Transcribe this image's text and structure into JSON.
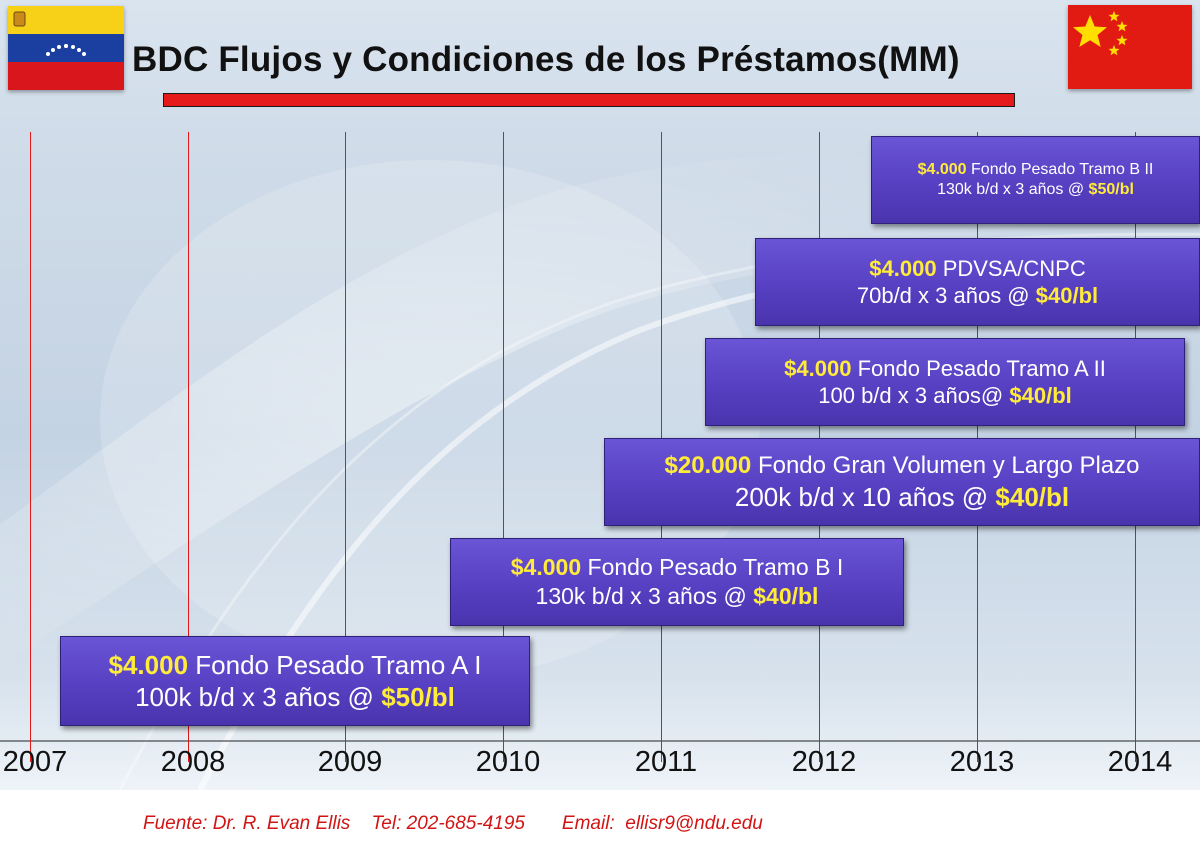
{
  "title": "BDC Flujos y Condiciones de los Préstamos(MM)",
  "years": [
    "2007",
    "2008",
    "2009",
    "2010",
    "2011",
    "2012",
    "2013",
    "2014"
  ],
  "loans": [
    {
      "amount": "$4.000",
      "name": "Fondo Pesado Tramo A I",
      "terms": "100k b/d x 3 años @ ",
      "price": "$50/bl"
    },
    {
      "amount": "$4.000",
      "name": "Fondo Pesado Tramo B I",
      "terms": "130k b/d x 3 años @ ",
      "price": "$40/bl"
    },
    {
      "amount": "$20.000",
      "name": "Fondo Gran Volumen y Largo Plazo",
      "terms": "200k b/d x 10 años @ ",
      "price": "$40/bl"
    },
    {
      "amount": "$4.000",
      "name": "Fondo Pesado Tramo A II",
      "terms": "100 b/d x 3 años@ ",
      "price": "$40/bl"
    },
    {
      "amount": "$4.000",
      "name": "PDVSA/CNPC",
      "terms": "70b/d x 3 años @ ",
      "price": "$40/bl"
    },
    {
      "amount": "$4.000",
      "name": "Fondo Pesado Tramo B II",
      "terms": "130k b/d x 3 años @ ",
      "price": "$50/bl"
    }
  ],
  "source": {
    "author": "Fuente: Dr. R. Evan Ellis",
    "tel": "Tel: 202-685-4195",
    "email": "Email:  ellisr9@ndu.edu"
  },
  "colors": {
    "box_fill": "#5740c2",
    "highlight": "#ffeb3b",
    "gridline": "#e01818",
    "title_bar": "#e51b1b",
    "source_text": "#d21414"
  },
  "icons": {
    "flag_left": "venezuela-flag-icon",
    "flag_right": "china-flag-icon"
  }
}
